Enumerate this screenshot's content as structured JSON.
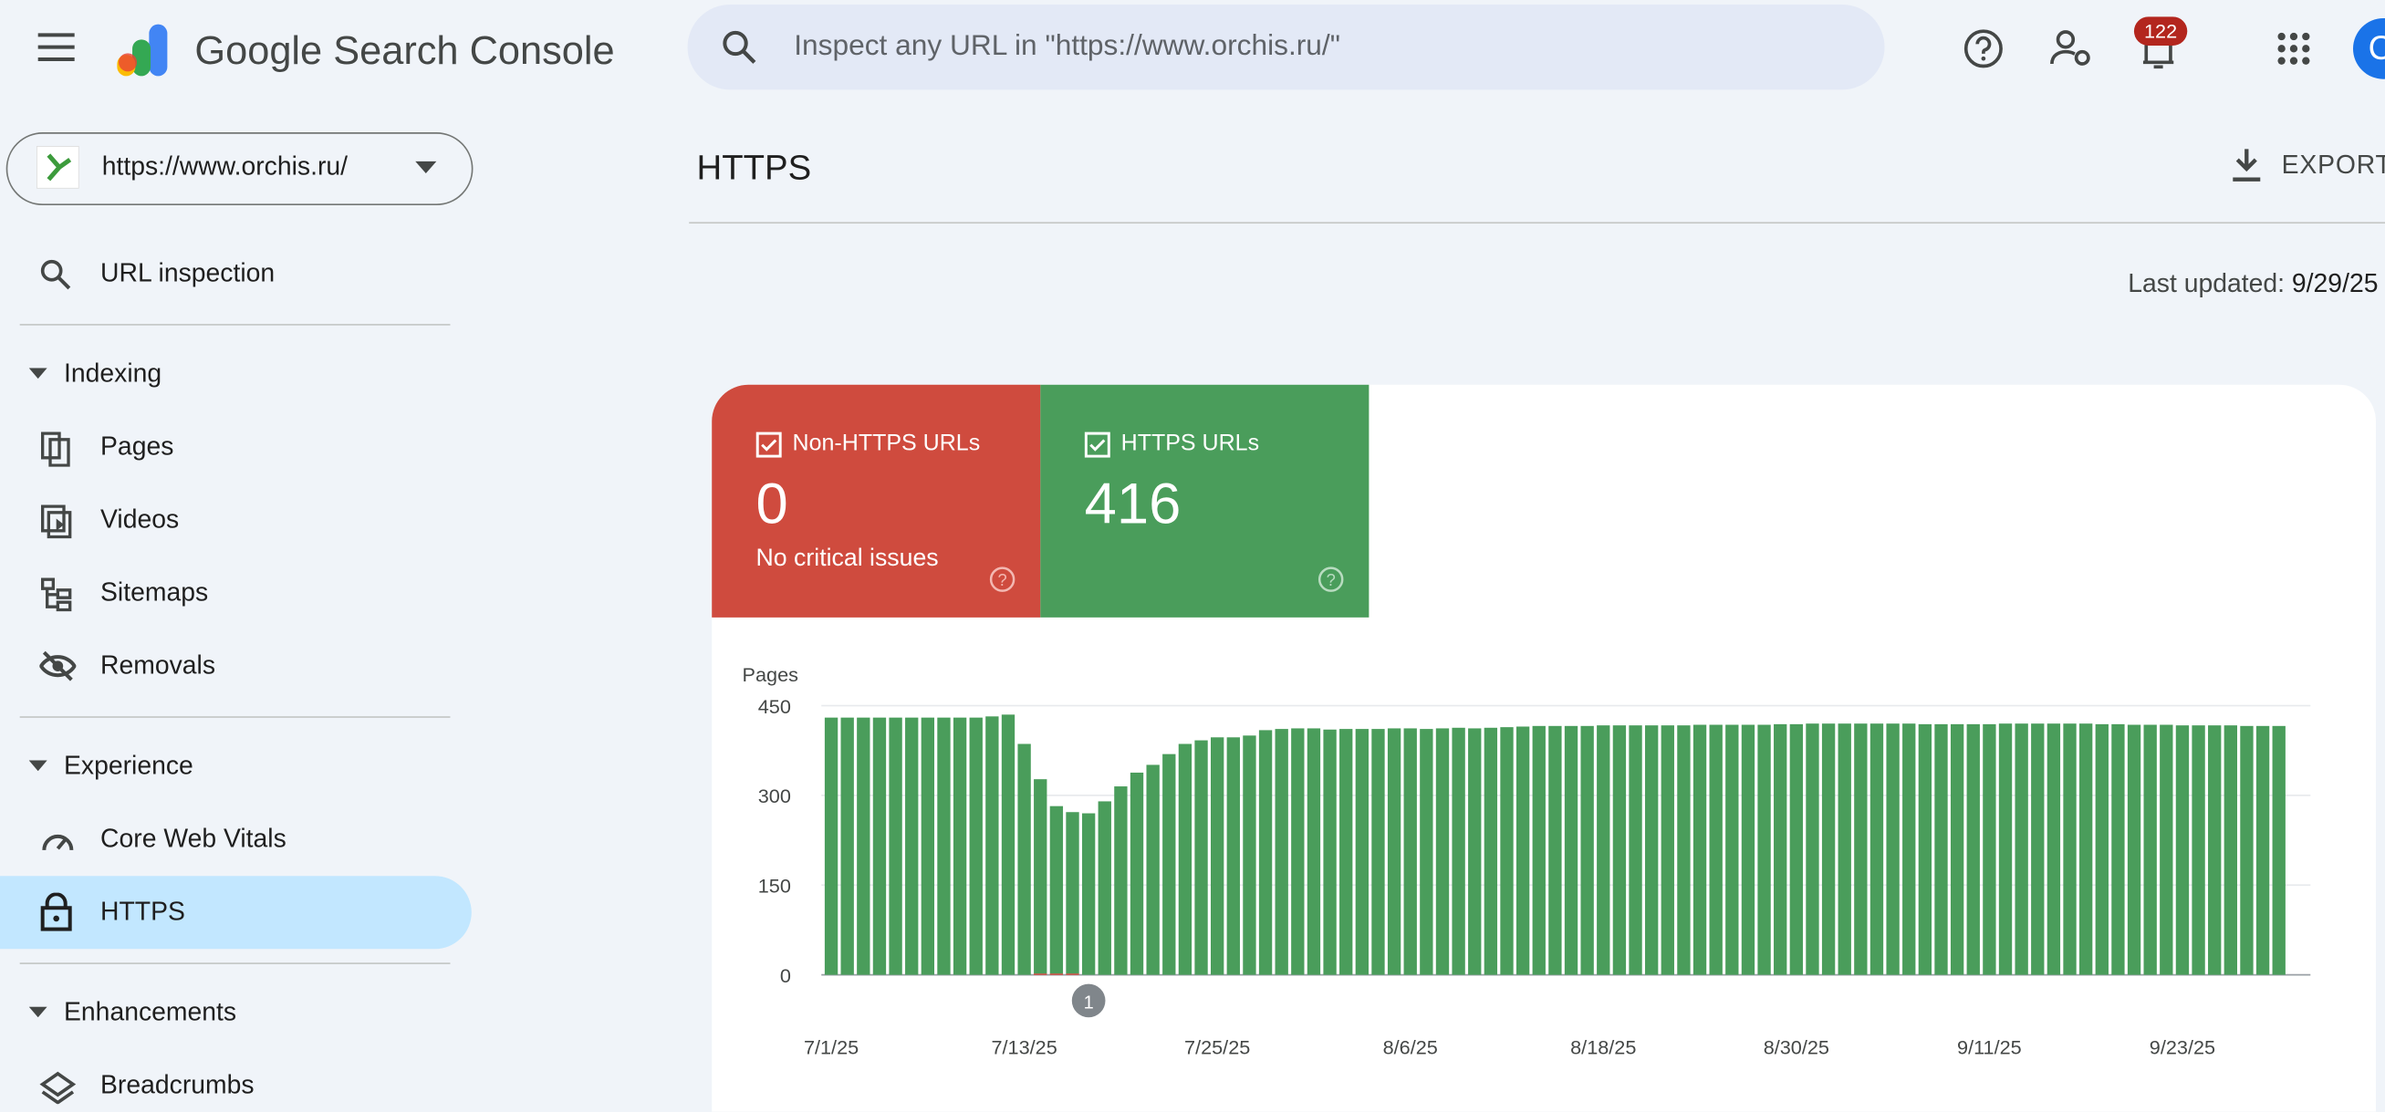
{
  "header": {
    "product": "Google Search Console",
    "search_placeholder": "Inspect any URL in \"https://www.orchis.ru/\"",
    "notifications": 122,
    "avatar": "C"
  },
  "sidebar": {
    "property": "https://www.orchis.ru/",
    "top_item": "URL inspection",
    "sections": [
      {
        "title": "Indexing",
        "items": [
          "Pages",
          "Videos",
          "Sitemaps",
          "Removals"
        ]
      },
      {
        "title": "Experience",
        "items": [
          "Core Web Vitals",
          "HTTPS"
        ]
      },
      {
        "title": "Enhancements",
        "items": [
          "Breadcrumbs"
        ]
      }
    ]
  },
  "main": {
    "page_title": "HTTPS",
    "export": "EXPORT",
    "last_updated_label": "Last updated:",
    "last_updated": "9/29/25",
    "summary": [
      {
        "value": 0,
        "note": "No critical issues"
      },
      {
        "value": 416
      }
    ]
  },
  "chart_data": {
    "type": "bar",
    "stacked": true,
    "y_label": "Pages",
    "grid": true,
    "annotation": "1",
    "categories": [
      "7/1/25",
      null,
      null,
      null,
      null,
      null,
      null,
      null,
      null,
      null,
      null,
      null,
      "7/13/25",
      null,
      null,
      null,
      null,
      null,
      null,
      null,
      null,
      null,
      null,
      null,
      "7/25/25",
      null,
      null,
      null,
      null,
      null,
      null,
      null,
      null,
      null,
      null,
      null,
      "8/6/25",
      null,
      null,
      null,
      null,
      null,
      null,
      null,
      null,
      null,
      null,
      null,
      "8/18/25",
      null,
      null,
      null,
      null,
      null,
      null,
      null,
      null,
      null,
      null,
      null,
      "8/30/25",
      null,
      null,
      null,
      null,
      null,
      null,
      null,
      null,
      null,
      null,
      null,
      "9/11/25",
      null,
      null,
      null,
      null,
      null,
      null,
      null,
      null,
      null,
      null,
      null,
      "9/23/25",
      null,
      null,
      null,
      null,
      null,
      null
    ],
    "series": [
      {
        "name": "Non-HTTPS URLs",
        "color": "#d93025",
        "values": [
          0,
          0,
          0,
          0,
          0,
          0,
          0,
          0,
          0,
          0,
          0,
          0,
          0,
          2,
          2,
          2,
          0,
          0,
          0,
          0,
          0,
          0,
          0,
          0,
          0,
          0,
          0,
          0,
          0,
          0,
          0,
          0,
          0,
          0,
          0,
          0,
          0,
          0,
          0,
          0,
          0,
          0,
          0,
          0,
          0,
          0,
          0,
          0,
          0,
          0,
          0,
          0,
          0,
          0,
          0,
          0,
          0,
          0,
          0,
          0,
          0,
          0,
          0,
          0,
          0,
          0,
          0,
          0,
          0,
          0,
          0,
          0,
          0,
          0,
          0,
          0,
          0,
          0,
          0,
          0,
          0,
          0,
          0,
          0,
          0,
          0,
          0,
          0,
          0,
          0,
          0
        ]
      },
      {
        "name": "HTTPS URLs",
        "color": "#4a9d5b",
        "values": [
          430,
          430,
          430,
          430,
          430,
          430,
          430,
          430,
          430,
          430,
          432,
          435,
          386,
          325,
          280,
          270,
          270,
          290,
          315,
          338,
          351,
          369,
          386,
          392,
          397,
          397,
          400,
          409,
          411,
          412,
          412,
          410,
          411,
          411,
          411,
          412,
          412,
          411,
          412,
          413,
          412,
          413,
          414,
          415,
          416,
          416,
          416,
          416,
          417,
          417,
          417,
          417,
          417,
          417,
          418,
          418,
          418,
          418,
          418,
          419,
          419,
          420,
          420,
          420,
          420,
          420,
          420,
          420,
          419,
          419,
          419,
          419,
          419,
          420,
          420,
          420,
          420,
          420,
          420,
          419,
          419,
          418,
          418,
          418,
          417,
          417,
          417,
          417,
          416,
          416,
          416
        ]
      }
    ],
    "ylim": [
      0,
      450
    ],
    "yticks": [
      0,
      150,
      300,
      450
    ]
  }
}
